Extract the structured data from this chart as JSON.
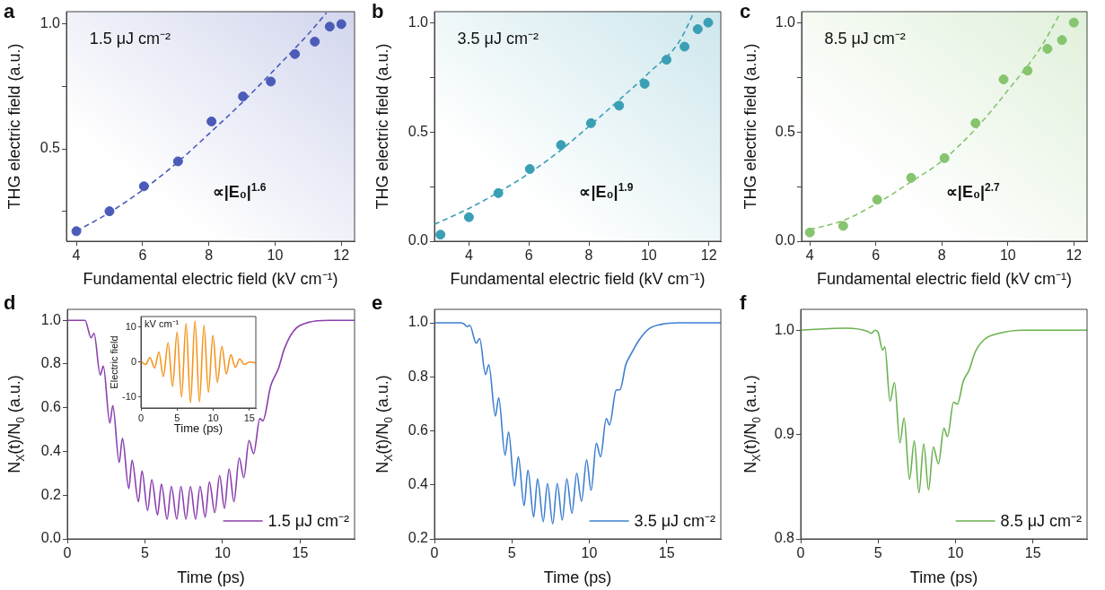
{
  "chart_data": [
    {
      "type": "scatter",
      "title": "a",
      "xlabel": "Fundamental electric field (kV cm⁻¹)",
      "ylabel": "THG electric field (a.u.)",
      "annotations": [
        "1.5 μJ cm⁻²",
        "∝|E₀|$^{1.6}$"
      ],
      "xlim": [
        3.7,
        12.4
      ],
      "ylim": [
        0.13,
        1.05
      ],
      "xticks": [
        4,
        6,
        8,
        10,
        12
      ],
      "yticks": [
        {
          "value": 0.25,
          "label": null
        },
        0.5,
        {
          "value": 0.75,
          "label": null
        },
        {
          "value": 1,
          "label": "1.0"
        }
      ],
      "series": [
        {
          "type": "scatter",
          "color": "#4b5bb8",
          "marker": "circle",
          "x": [
            4.0,
            5.0,
            6.04,
            7.07,
            8.08,
            9.03,
            9.87,
            10.6,
            11.2,
            11.65,
            12.0
          ],
          "values": [
            0.17,
            0.25,
            0.35,
            0.45,
            0.61,
            0.71,
            0.77,
            0.88,
            0.93,
            0.99,
            1.0
          ]
        },
        {
          "type": "line",
          "color": "#4b5bb8",
          "line_style": "dashed",
          "x": [
            4,
            5,
            6,
            7,
            8,
            9,
            10,
            11,
            11.55
          ],
          "values": [
            0.17,
            0.245,
            0.335,
            0.44,
            0.56,
            0.685,
            0.82,
            0.96,
            1.045
          ]
        }
      ]
    },
    {
      "type": "scatter",
      "title": "b",
      "xlabel": "Fundamental electric field (kV cm⁻¹)",
      "ylabel": "THG electric field (a.u.)",
      "annotations": [
        "3.5 μJ cm⁻²",
        "∝|E₀|$^{1.9}$"
      ],
      "xlim": [
        2.85,
        12.4
      ],
      "ylim": [
        0,
        1.05
      ],
      "xticks": [
        4,
        6,
        8,
        10,
        12
      ],
      "yticks": [
        {
          "value": 0,
          "label": "0.0"
        },
        {
          "value": 0.25,
          "label": null
        },
        0.5,
        {
          "value": 0.75,
          "label": null
        },
        {
          "value": 1,
          "label": "1.0"
        }
      ],
      "series": [
        {
          "type": "scatter",
          "color": "#3a9fb5",
          "marker": "circle",
          "x": [
            3.05,
            4.0,
            4.98,
            6.03,
            7.07,
            8.07,
            9.01,
            9.86,
            10.59,
            11.19,
            11.63,
            11.98
          ],
          "values": [
            0.03,
            0.11,
            0.22,
            0.33,
            0.44,
            0.54,
            0.62,
            0.72,
            0.83,
            0.89,
            0.97,
            1.0
          ]
        },
        {
          "type": "line",
          "color": "#3a9fb5",
          "line_style": "dashed",
          "x": [
            2.85,
            4,
            5,
            6,
            7,
            8,
            9,
            10,
            11,
            11.5
          ],
          "values": [
            0.077,
            0.15,
            0.225,
            0.31,
            0.41,
            0.525,
            0.645,
            0.77,
            0.91,
            1.045
          ]
        }
      ]
    },
    {
      "type": "scatter",
      "title": "c",
      "xlabel": "Fundamental electric field (kV cm⁻¹)",
      "ylabel": "THG electric field (a.u.)",
      "annotations": [
        "8.5 μJ cm⁻²",
        "∝|E₀|$^{2.7}$"
      ],
      "xlim": [
        3.75,
        12.4
      ],
      "ylim": [
        0,
        1.05
      ],
      "xticks": [
        4,
        6,
        8,
        10,
        12
      ],
      "yticks": [
        {
          "value": 0,
          "label": "0.0"
        },
        {
          "value": 0.25,
          "label": null
        },
        0.5,
        {
          "value": 0.75,
          "label": null
        },
        {
          "value": 1,
          "label": "1.0"
        }
      ],
      "series": [
        {
          "type": "scatter",
          "color": "#86c46e",
          "marker": "circle",
          "x": [
            4.0,
            5.01,
            6.04,
            7.07,
            8.08,
            9.02,
            9.87,
            10.6,
            11.2,
            11.64,
            12.0
          ],
          "values": [
            0.04,
            0.07,
            0.19,
            0.29,
            0.38,
            0.54,
            0.74,
            0.78,
            0.88,
            0.92,
            1.0
          ]
        },
        {
          "type": "line",
          "color": "#86c46e",
          "line_style": "dashed",
          "x": [
            4,
            5,
            6,
            7,
            8,
            9,
            10,
            11,
            11.59
          ],
          "values": [
            0.053,
            0.094,
            0.17,
            0.265,
            0.367,
            0.51,
            0.69,
            0.887,
            1.044
          ]
        }
      ]
    },
    {
      "type": "line",
      "title": "d",
      "xlabel": "Time (ps)",
      "ylabel": "N$_{X}$(t)/N$_{0}$ (a.u.)",
      "legend": "bottom right",
      "xlim": [
        0,
        18.5
      ],
      "ylim": [
        0,
        1.05
      ],
      "xticks": [
        0,
        5,
        10,
        15
      ],
      "yticks": [
        {
          "value": 0,
          "label": "0.0"
        },
        0.2,
        0.4,
        0.6,
        0.8,
        {
          "value": 1,
          "label": "1.0"
        }
      ],
      "series": [
        {
          "name": "1.5 μJ cm⁻²",
          "color": "#8b3fae",
          "x": [
            0,
            1.14,
            1.53,
            1.72,
            2.12,
            2.32,
            2.74,
            2.93,
            3.34,
            3.55,
            3.96,
            4.17,
            4.58,
            4.81,
            5.17,
            5.44,
            5.81,
            6.06,
            6.43,
            6.7,
            7.05,
            7.32,
            7.64,
            7.93,
            8.26,
            8.55,
            8.88,
            9.15,
            9.5,
            9.81,
            10.12,
            10.42,
            10.73,
            11.07,
            11.37,
            11.7,
            12.0,
            12.4,
            12.59,
            13.1,
            13.6,
            13.98,
            14.56,
            15.5,
            16.9,
            18.5
          ],
          "values": [
            1.0,
            1.0,
            0.92,
            0.94,
            0.75,
            0.79,
            0.53,
            0.61,
            0.35,
            0.46,
            0.23,
            0.36,
            0.17,
            0.31,
            0.13,
            0.27,
            0.11,
            0.25,
            0.09,
            0.24,
            0.09,
            0.24,
            0.09,
            0.24,
            0.09,
            0.24,
            0.1,
            0.26,
            0.12,
            0.29,
            0.14,
            0.32,
            0.17,
            0.37,
            0.28,
            0.45,
            0.39,
            0.55,
            0.54,
            0.7,
            0.78,
            0.87,
            0.95,
            0.99,
            1.0,
            1.0
          ]
        }
      ]
    },
    {
      "type": "line",
      "xlabel": "Time (ps)",
      "ylabel": "Electric field",
      "annotations": [
        "kV cm⁻¹"
      ],
      "xlim": [
        0,
        15.9
      ],
      "ylim": [
        -13.1,
        13
      ],
      "xticks": [
        0,
        5,
        10,
        15
      ],
      "yticks": [
        -10,
        0,
        10
      ],
      "series": [
        {
          "color": "#f5951f",
          "x": [
            0,
            0.66,
            1.24,
            1.9,
            2.48,
            3.1,
            3.76,
            4.38,
            5.0,
            5.62,
            6.24,
            6.86,
            7.48,
            8.1,
            8.72,
            9.34,
            9.96,
            10.58,
            11.2,
            11.82,
            12.44,
            13.06,
            13.68,
            14.3,
            15.0,
            15.87
          ],
          "values": [
            0.3,
            -0.7,
            1.3,
            -1.7,
            2.9,
            -4.1,
            5.5,
            -7.0,
            8.6,
            -10.0,
            11.1,
            -11.6,
            11.7,
            -11.4,
            10.5,
            -8.6,
            7.6,
            -5.8,
            4.5,
            -3.4,
            2.1,
            -1.5,
            0.9,
            -0.7,
            0,
            -0.2
          ]
        }
      ]
    },
    {
      "type": "line",
      "title": "e",
      "xlabel": "Time (ps)",
      "ylabel": "N$_{X}$(t)/N$_{0}$ (a.u.)",
      "legend": "bottom right",
      "xlim": [
        0,
        18.5
      ],
      "ylim": [
        0.2,
        1.05
      ],
      "xticks": [
        0,
        5,
        10,
        15
      ],
      "yticks": [
        0.2,
        0.4,
        0.6,
        0.8,
        {
          "value": 1,
          "label": "1.0"
        }
      ],
      "series": [
        {
          "name": "3.5 μJ cm⁻²",
          "color": "#3e7fd0",
          "x": [
            0,
            1.6,
            1.89,
            2.12,
            2.28,
            2.7,
            2.92,
            3.3,
            3.51,
            3.94,
            4.15,
            4.56,
            4.79,
            5.17,
            5.42,
            5.79,
            6.04,
            6.41,
            6.66,
            7.03,
            7.3,
            7.64,
            7.93,
            8.26,
            8.55,
            8.88,
            9.19,
            9.5,
            9.83,
            10.12,
            10.46,
            10.73,
            11.1,
            11.31,
            11.74,
            11.99,
            12.36,
            12.7,
            13.19,
            13.86,
            14.63,
            15.8,
            18.5
          ],
          "values": [
            1.0,
            1.0,
            0.997,
            0.986,
            0.991,
            0.925,
            0.942,
            0.809,
            0.845,
            0.655,
            0.723,
            0.51,
            0.596,
            0.396,
            0.504,
            0.323,
            0.455,
            0.281,
            0.422,
            0.264,
            0.405,
            0.256,
            0.405,
            0.27,
            0.422,
            0.295,
            0.443,
            0.339,
            0.493,
            0.38,
            0.554,
            0.504,
            0.646,
            0.622,
            0.751,
            0.753,
            0.845,
            0.884,
            0.934,
            0.978,
            0.994,
            1.0,
            1.0
          ]
        }
      ]
    },
    {
      "type": "line",
      "title": "f",
      "xlabel": "Time (ps)",
      "ylabel": "N$_{X}$(t)/N$_{0}$ (a.u.)",
      "legend": "bottom right",
      "xlim": [
        0,
        18.5
      ],
      "ylim": [
        0.8,
        1.02
      ],
      "xticks": [
        0,
        5,
        10,
        15
      ],
      "yticks": [
        0.8,
        0.9,
        {
          "value": 1,
          "label": "1.0"
        }
      ],
      "series": [
        {
          "name": "8.5 μJ cm⁻²",
          "color": "#6ab150",
          "x": [
            0,
            2.97,
            4.32,
            4.56,
            4.81,
            5.0,
            5.29,
            5.44,
            5.77,
            6.06,
            6.41,
            6.68,
            7.03,
            7.34,
            7.64,
            7.95,
            8.26,
            8.57,
            8.9,
            9.25,
            9.48,
            9.88,
            10.12,
            10.5,
            10.89,
            11.27,
            11.85,
            12.82,
            14.36,
            18.5
          ],
          "values": [
            1.0,
            1.002,
            0.999,
            0.997,
            1.0,
            0.998,
            0.981,
            0.984,
            0.932,
            0.95,
            0.892,
            0.916,
            0.857,
            0.894,
            0.844,
            0.891,
            0.847,
            0.888,
            0.872,
            0.906,
            0.898,
            0.931,
            0.929,
            0.951,
            0.962,
            0.979,
            0.991,
            0.997,
            1.0,
            1.0
          ]
        }
      ]
    }
  ]
}
